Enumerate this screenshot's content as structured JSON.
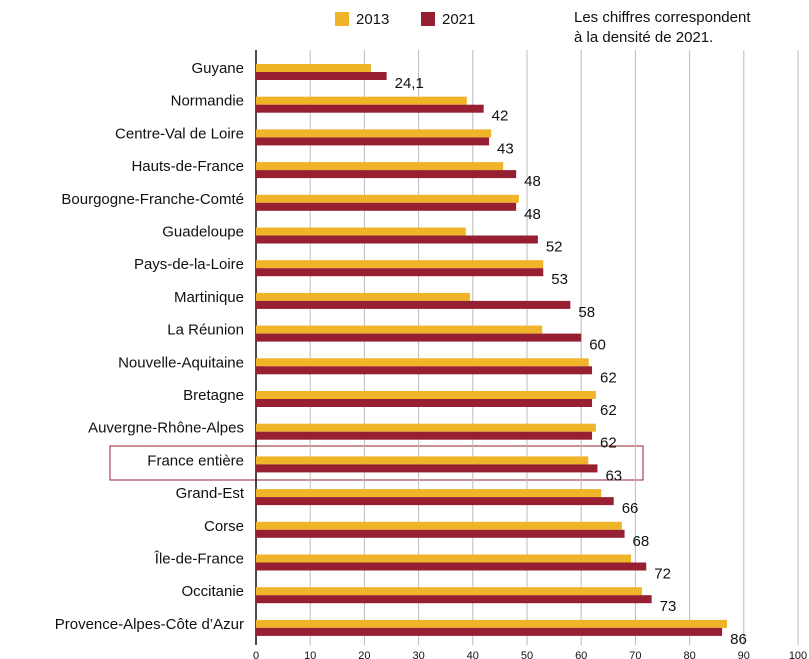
{
  "chart_data": {
    "type": "bar",
    "orientation": "horizontal",
    "annotation": [
      "Les chiffres correspondent",
      "à la densité de 2021."
    ],
    "categories": [
      "Guyane",
      "Normandie",
      "Centre-Val de Loire",
      "Hauts-de-France",
      "Bourgogne-Franche-Comté",
      "Guadeloupe",
      "Pays-de-la-Loire",
      "Martinique",
      "La Réunion",
      "Nouvelle-Aquitaine",
      "Bretagne",
      "Auvergne-Rhône-Alpes",
      "France entière",
      "Grand-Est",
      "Corse",
      "Île-de-France",
      "Occitanie",
      "Provence-Alpes-Côte d’Azur"
    ],
    "series": [
      {
        "name": "2013",
        "color": "#f0b429",
        "values": [
          21.2,
          38.9,
          43.4,
          45.6,
          48.5,
          38.7,
          53,
          39.5,
          52.8,
          61.4,
          62.7,
          62.7,
          61.3,
          63.7,
          67.5,
          69.2,
          71.2,
          86.9
        ]
      },
      {
        "name": "2021",
        "color": "#962032",
        "values": [
          24.1,
          42,
          43,
          48,
          48,
          52,
          53,
          58,
          60,
          62,
          62,
          62,
          63,
          66,
          68,
          72,
          73,
          86
        ],
        "value_labels": [
          "24,1",
          "42",
          "43",
          "48",
          "48",
          "52",
          "53",
          "58",
          "60",
          "62",
          "62",
          "62",
          "63",
          "66",
          "68",
          "72",
          "73",
          "86"
        ]
      }
    ],
    "xlim": [
      0,
      100
    ],
    "xticks": [
      0,
      10,
      20,
      30,
      40,
      50,
      60,
      70,
      80,
      90,
      100
    ],
    "grid": true
  }
}
